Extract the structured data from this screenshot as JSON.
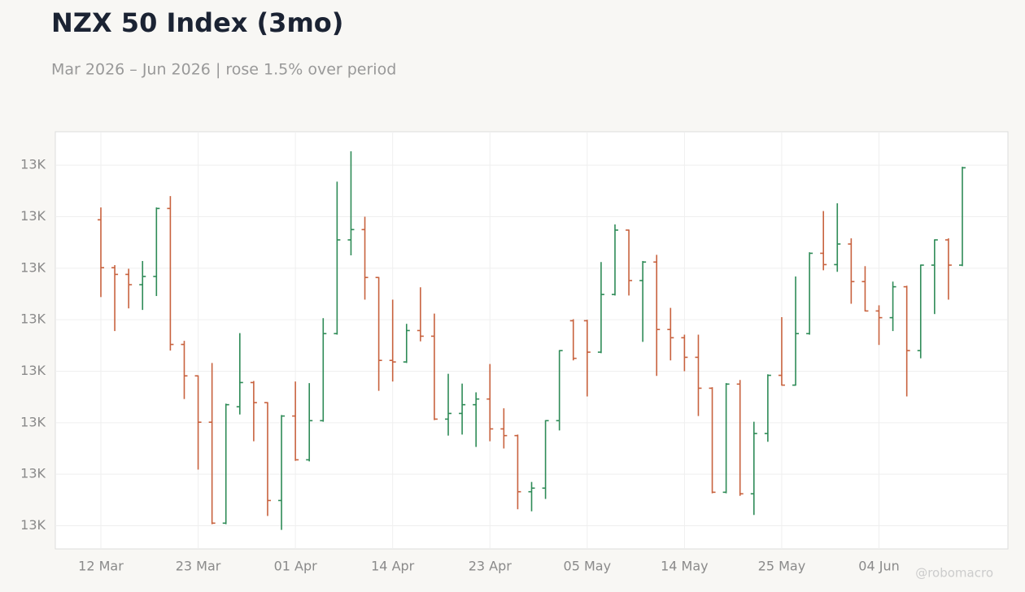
{
  "chart_data": {
    "type": "ohlc",
    "title": "NZX 50 Index (3mo)",
    "subtitle": "Mar 2026 – Jun 2026 | rose 1.5% over period",
    "watermark": "@robomacro",
    "up_color": "#2e8b57",
    "down_color": "#c8623e",
    "grid": true,
    "categories": [
      "12 Mar",
      null,
      null,
      null,
      null,
      null,
      null,
      "23 Mar",
      null,
      null,
      null,
      null,
      null,
      null,
      "01 Apr",
      null,
      null,
      null,
      null,
      null,
      null,
      "14 Apr",
      null,
      null,
      null,
      null,
      null,
      null,
      "23 Apr",
      null,
      null,
      null,
      null,
      null,
      null,
      "05 May",
      null,
      null,
      null,
      null,
      null,
      null,
      "14 May",
      null,
      null,
      null,
      null,
      null,
      null,
      "25 May",
      null,
      null,
      null,
      null,
      null,
      null,
      "04 Jun",
      null,
      null,
      null,
      null,
      null,
      null
    ],
    "open": [
      13244,
      13151,
      13138,
      13118,
      13134,
      13266,
      13002,
      12941,
      12851,
      12655,
      12881,
      12928,
      12889,
      12699,
      12863,
      12778,
      12854,
      13023,
      13205,
      13225,
      13132,
      12971,
      12968,
      13029,
      13018,
      12857,
      12868,
      12885,
      12896,
      12838,
      12825,
      12716,
      12723,
      12854,
      13048,
      13048,
      12987,
      13099,
      13224,
      13126,
      13162,
      13031,
      13015,
      12977,
      12917,
      12715,
      12925,
      12712,
      12829,
      12942,
      12923,
      13023,
      13179,
      13157,
      13197,
      13124,
      13067,
      13054,
      13114,
      12990,
      13156,
      13205,
      13156
    ],
    "high": [
      13268,
      13156,
      13149,
      13164,
      13268,
      13290,
      13009,
      12942,
      12966,
      12887,
      13024,
      12931,
      12890,
      12865,
      12930,
      12927,
      13053,
      13318,
      13377,
      13250,
      13133,
      13089,
      13042,
      13113,
      13062,
      12945,
      12926,
      12909,
      12964,
      12878,
      12827,
      12735,
      12855,
      12991,
      13051,
      13050,
      13162,
      13235,
      13225,
      13164,
      13176,
      13073,
      13021,
      13021,
      12919,
      12927,
      12933,
      12852,
      12944,
      13055,
      13134,
      13181,
      13261,
      13276,
      13208,
      13154,
      13078,
      13124,
      13116,
      13157,
      13206,
      13208,
      13347
    ],
    "low": [
      13094,
      13028,
      13072,
      13069,
      13096,
      12990,
      12896,
      12759,
      12653,
      12653,
      12866,
      12814,
      12669,
      12642,
      12776,
      12775,
      12852,
      13021,
      13175,
      13089,
      12912,
      12930,
      12966,
      13008,
      12855,
      12825,
      12827,
      12803,
      12814,
      12800,
      12682,
      12678,
      12702,
      12835,
      12971,
      12901,
      12985,
      13097,
      13097,
      13007,
      12941,
      12971,
      12950,
      12863,
      12713,
      12713,
      12708,
      12671,
      12813,
      12922,
      12922,
      13021,
      13146,
      13143,
      13081,
      13066,
      13001,
      13028,
      12901,
      12975,
      13061,
      13089,
      13154
    ],
    "close": [
      13151,
      13138,
      13118,
      13134,
      13266,
      13002,
      12941,
      12851,
      12655,
      12885,
      12928,
      12889,
      12699,
      12863,
      12778,
      12854,
      13023,
      13205,
      13225,
      13132,
      12971,
      12968,
      13029,
      13018,
      12857,
      12868,
      12885,
      12896,
      12838,
      12825,
      12716,
      12723,
      12854,
      12990,
      12975,
      12987,
      13099,
      13224,
      13126,
      13162,
      13031,
      13015,
      12977,
      12917,
      12715,
      12925,
      12712,
      12829,
      12942,
      12923,
      13023,
      13179,
      13157,
      13197,
      13124,
      13067,
      13054,
      13114,
      12990,
      13156,
      13205,
      13156,
      13345
    ],
    "ylim": [
      12605,
      13415
    ],
    "yticks": [
      {
        "value": 12650,
        "label": "13K"
      },
      {
        "value": 12750,
        "label": "13K"
      },
      {
        "value": 12850,
        "label": "13K"
      },
      {
        "value": 12950,
        "label": "13K"
      },
      {
        "value": 13050,
        "label": "13K"
      },
      {
        "value": 13150,
        "label": "13K"
      },
      {
        "value": 13250,
        "label": "13K"
      },
      {
        "value": 13350,
        "label": "13K"
      }
    ]
  }
}
